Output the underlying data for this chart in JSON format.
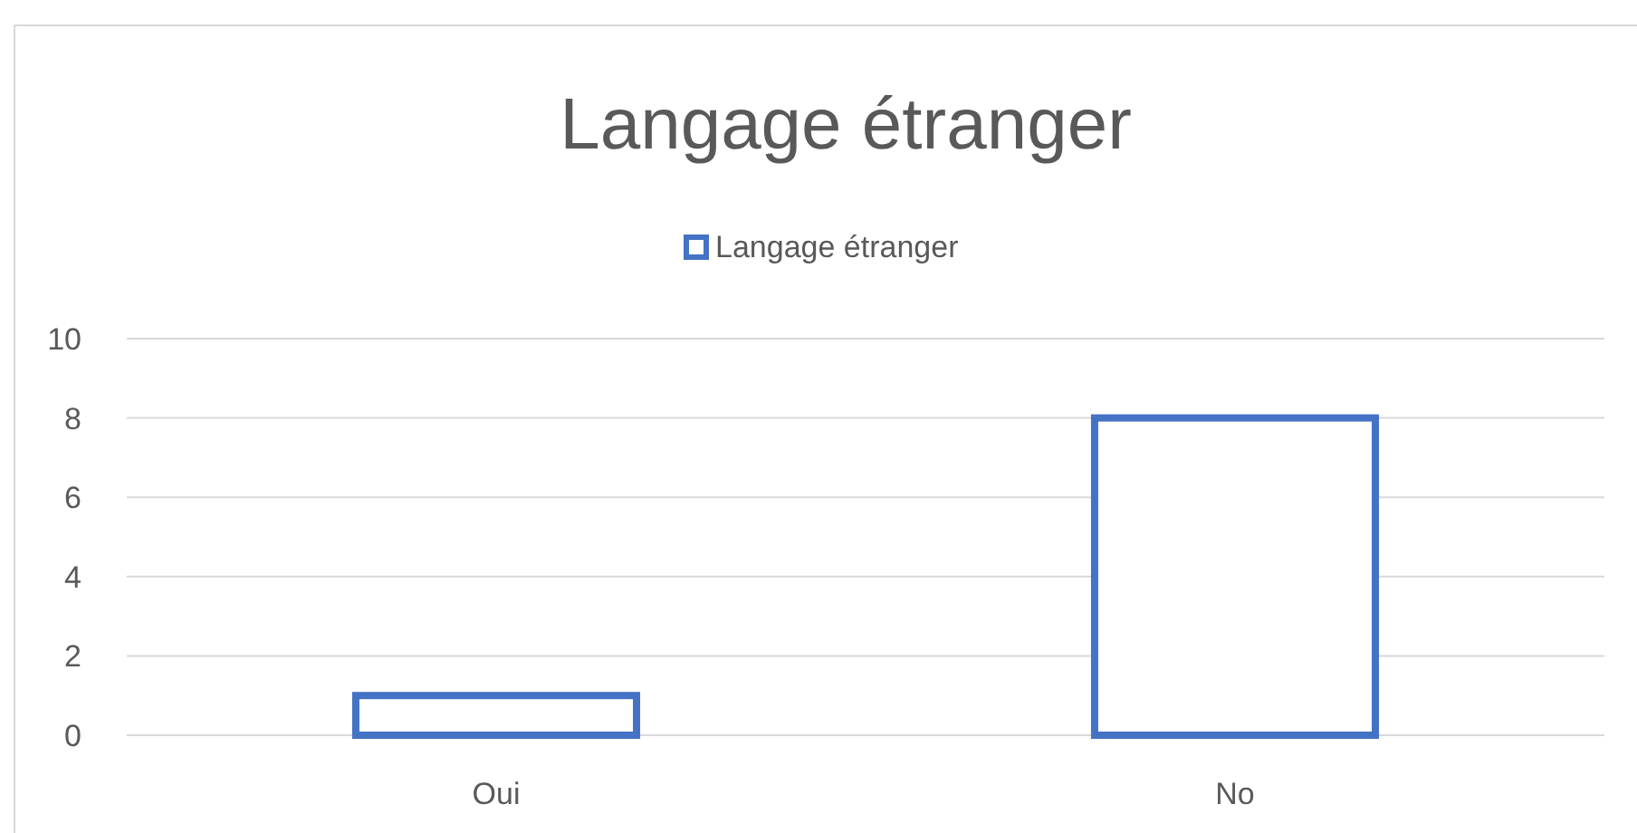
{
  "chart_data": {
    "type": "bar",
    "title": "Langage étranger",
    "categories": [
      "Oui",
      "No"
    ],
    "series": [
      {
        "name": "Langage étranger",
        "color": "#4472c4",
        "values": [
          1,
          8
        ]
      }
    ],
    "ylim": [
      0,
      10
    ],
    "yticks": [
      0,
      2,
      4,
      6,
      8,
      10
    ],
    "grid": "y",
    "legend": "top"
  }
}
